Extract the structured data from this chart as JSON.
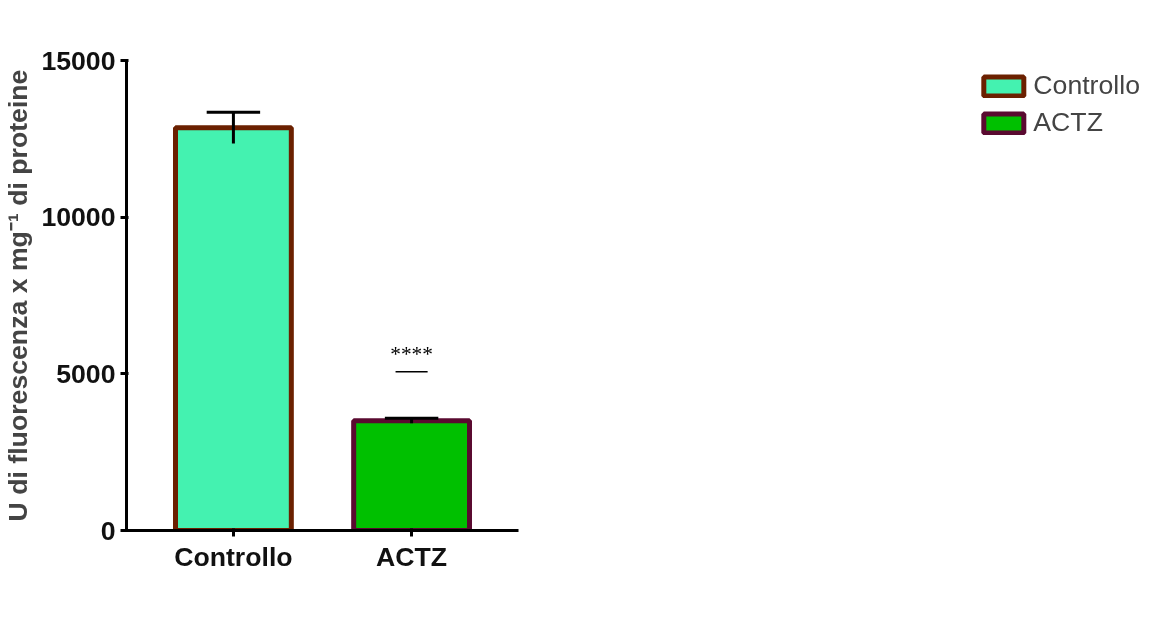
{
  "chart_data": {
    "type": "bar",
    "ylabel": "U di fluorescenza x mg⁻¹ di proteine",
    "categories": [
      "Controllo",
      "ACTZ"
    ],
    "series": [
      {
        "name": "Controllo",
        "color": "#44f2b0",
        "values": [
          12850,
          null
        ],
        "errors": [
          500,
          null
        ]
      },
      {
        "name": "ACTZ",
        "color": "#00c000",
        "values": [
          null,
          3500
        ],
        "errors": [
          null,
          80
        ]
      }
    ],
    "ylim": [
      0,
      15000
    ],
    "yticks": [
      0,
      5000,
      10000,
      15000
    ],
    "grid": false,
    "legend": "top right",
    "annotations": [
      "****"
    ]
  }
}
